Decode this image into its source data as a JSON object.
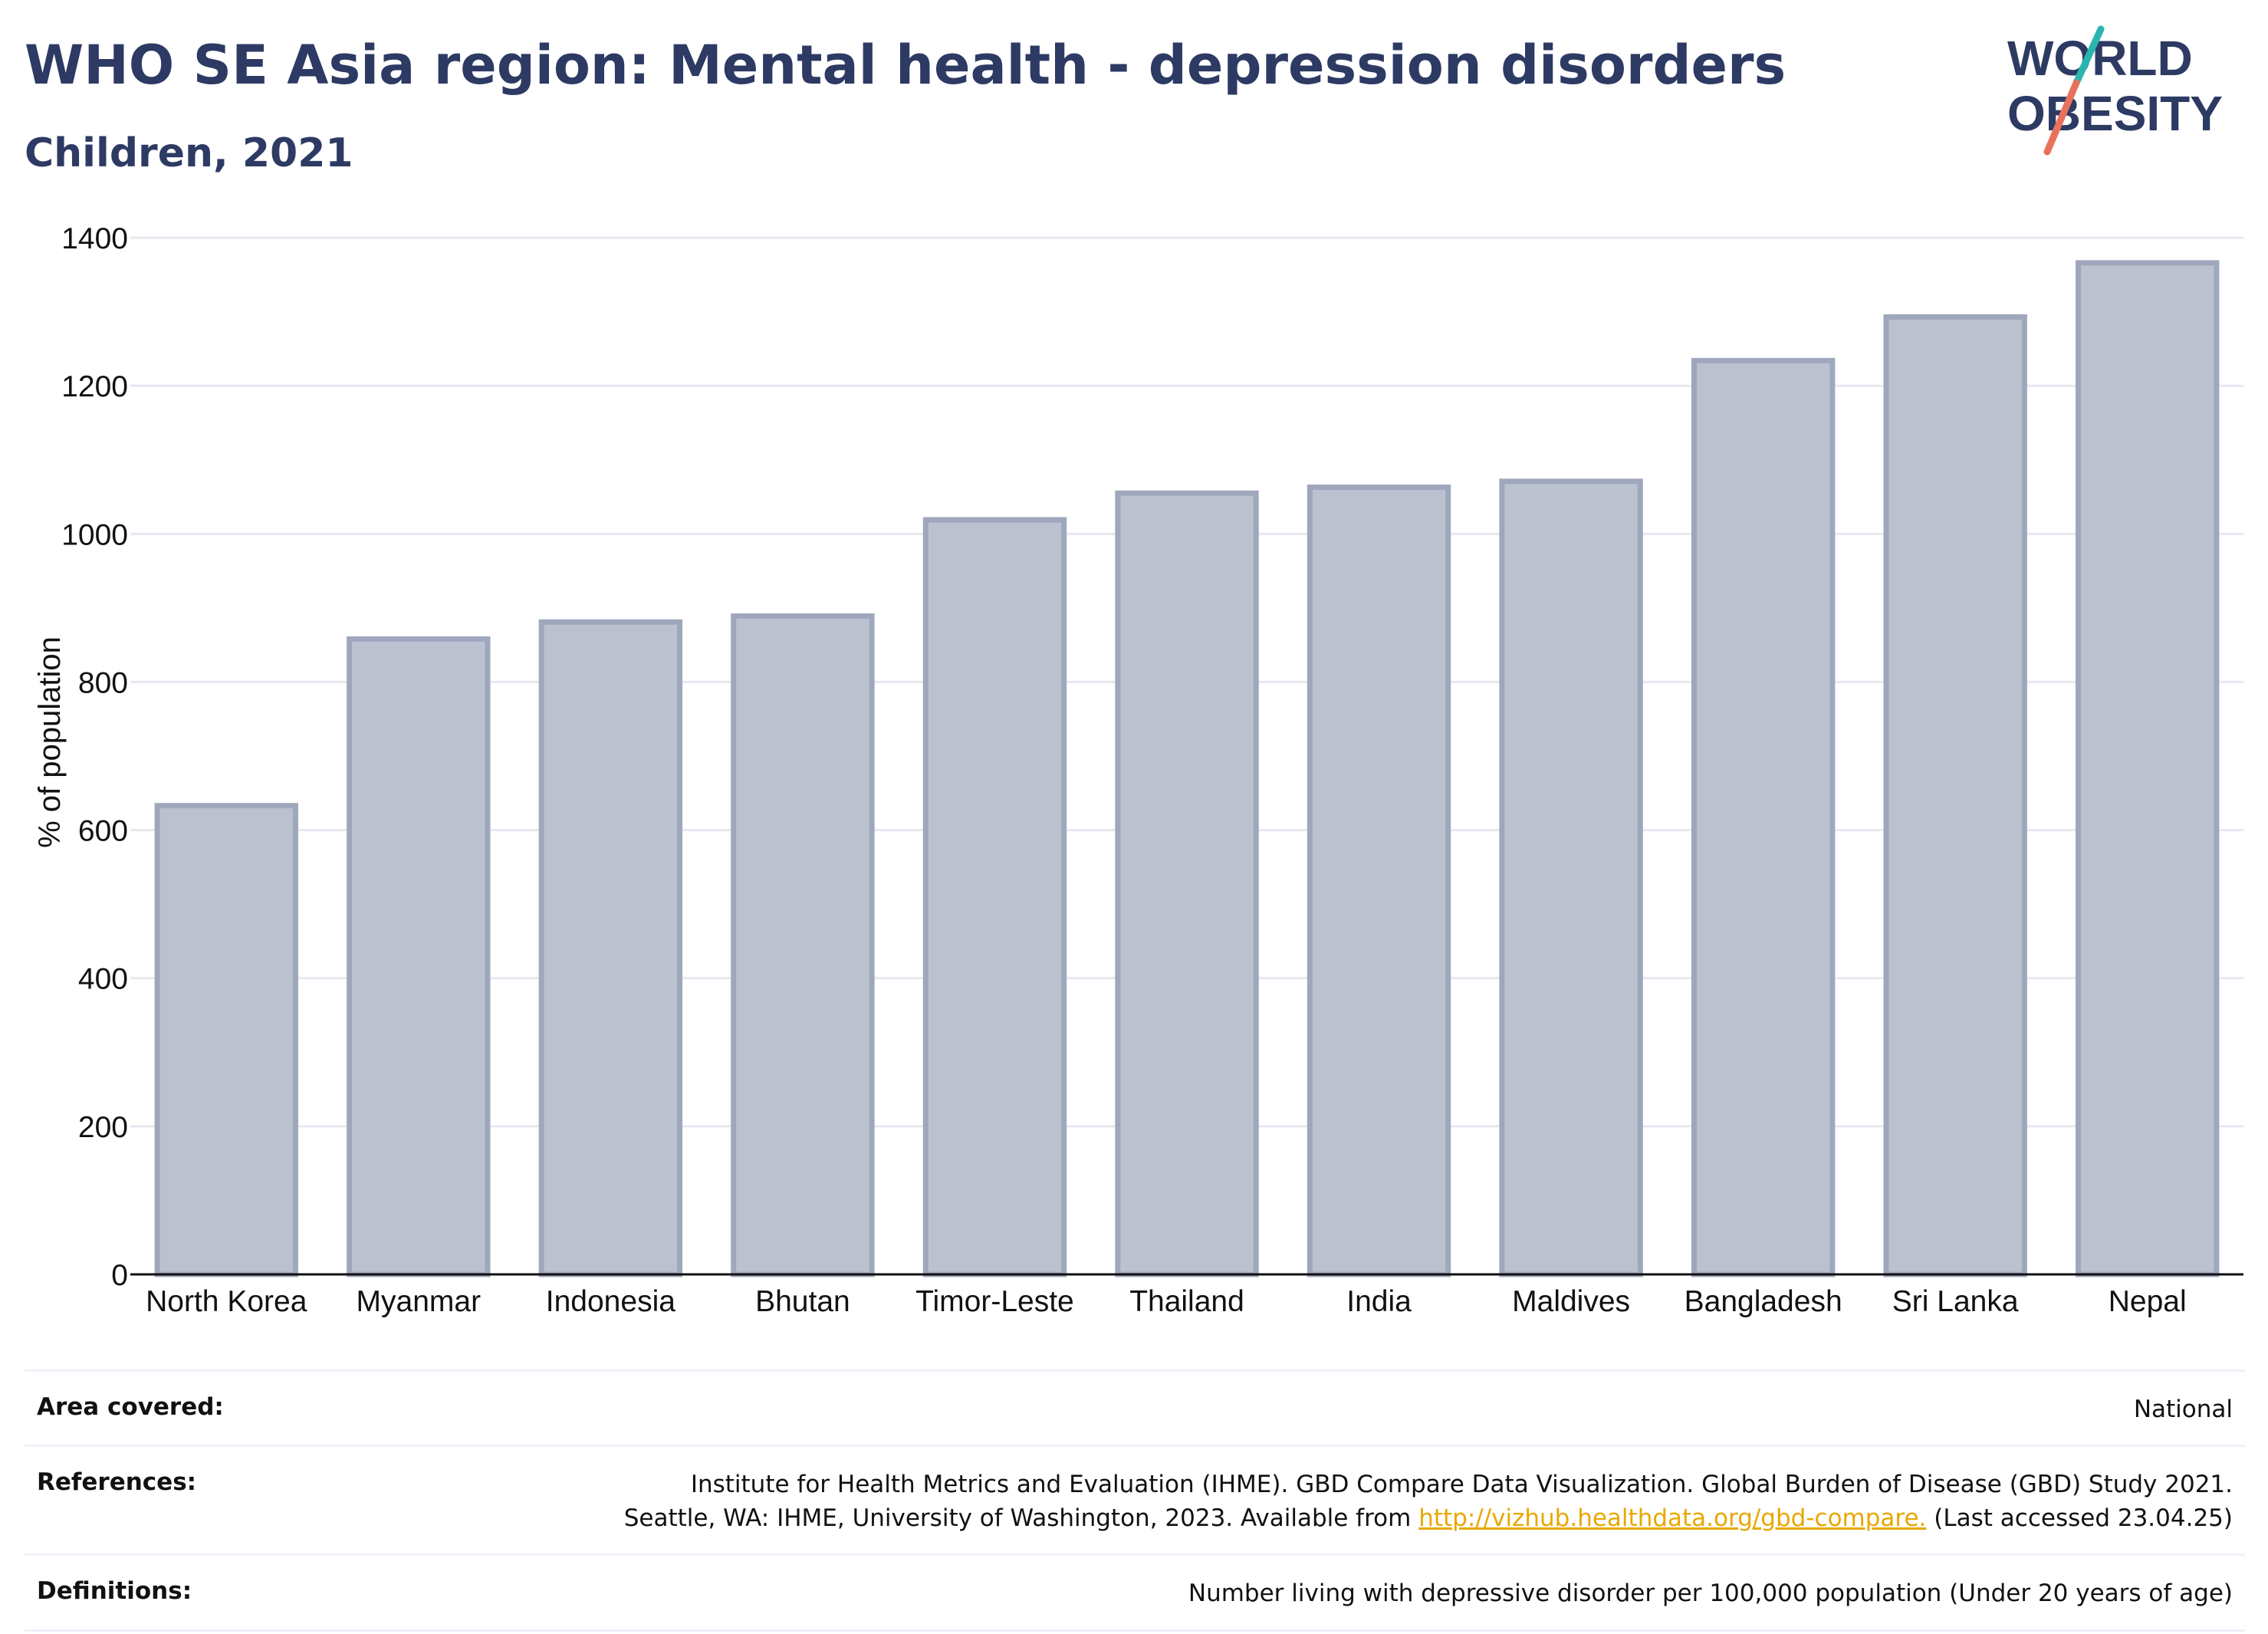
{
  "header": {
    "title": "WHO SE Asia region: Mental health - depression disorders",
    "subtitle": "Children, 2021"
  },
  "logo": {
    "line1": "WORLD",
    "line2": "OBESITY",
    "text_color": "#2d3a63",
    "accent_teal": "#2bb5b0",
    "accent_coral": "#e8715c"
  },
  "chart_data": {
    "type": "bar",
    "categories": [
      "North Korea",
      "Myanmar",
      "Indonesia",
      "Bhutan",
      "Timor-Leste",
      "Thailand",
      "India",
      "Maldives",
      "Bangladesh",
      "Sri Lanka",
      "Nepal"
    ],
    "values": [
      633,
      858,
      881,
      889,
      1019,
      1055,
      1063,
      1071,
      1234,
      1293,
      1366
    ],
    "ylabel": "% of population",
    "xlabel": "",
    "ylim": [
      0,
      1400
    ],
    "yticks": [
      0,
      200,
      400,
      600,
      800,
      1000,
      1200,
      1400
    ],
    "grid": true,
    "bar_fill": "#bcc1cf",
    "bar_stroke": "#9fa7bd"
  },
  "info": {
    "area_label": "Area covered:",
    "area_value": "National",
    "references_label": "References:",
    "references_line1": "Institute for Health Metrics and Evaluation (IHME). GBD Compare Data Visualization. Global Burden of Disease (GBD) Study 2021.",
    "references_line2_pre": "Seattle, WA: IHME, University of Washington, 2023. Available from ",
    "references_link": "http://vizhub.healthdata.org/gbd-compare.",
    "references_line2_post": " (Last accessed 23.04.25)",
    "definitions_label": "Definitions:",
    "definitions_value": "Number living with depressive disorder per 100,000 population (Under 20 years of age)"
  }
}
